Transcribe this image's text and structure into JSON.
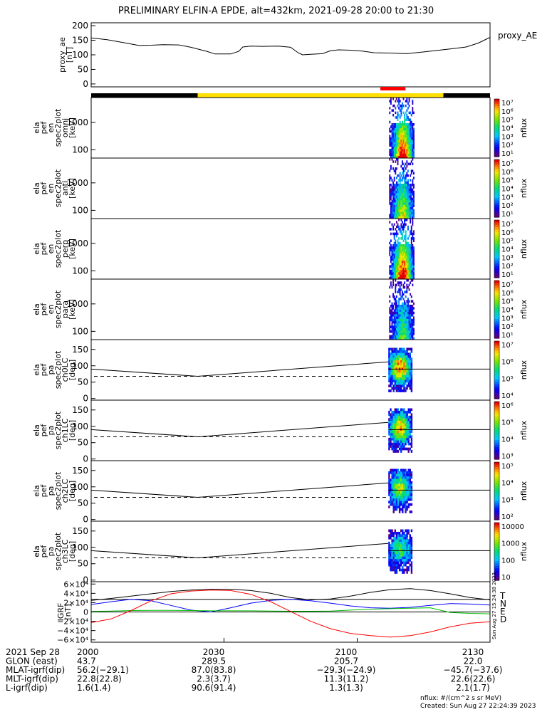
{
  "title": "PRELIMINARY ELFIN-A EPDE, alt=432km, 2021-09-28 20:00 to 21:30",
  "colors": {
    "sci_black": "#000000",
    "sci_yellow": "#ffe000",
    "sci_red": "#ff0000",
    "igrf_T": "#000000",
    "igrf_N": "#0000ff",
    "igrf_E": "#00c000",
    "igrf_D": "#ff0000"
  },
  "status_bar": {
    "segments": [
      {
        "from": 0.0,
        "to": 0.267,
        "color": "sci_black"
      },
      {
        "from": 0.267,
        "to": 0.883,
        "color": "sci_yellow"
      },
      {
        "from": 0.883,
        "to": 1.0,
        "color": "sci_black"
      }
    ],
    "red_marker": {
      "from": 0.725,
      "to": 0.788
    }
  },
  "chart_data": [
    {
      "type": "line",
      "panel": "proxy_ae",
      "ylabel_lines": [
        "proxy_ae",
        "[nT]"
      ],
      "legend": "proxy_AE",
      "ylim": [
        -10,
        210
      ],
      "yticks": [
        "200",
        "150",
        "100",
        "50",
        "0"
      ],
      "ytick_values": [
        200,
        150,
        100,
        50,
        0
      ],
      "x": [
        0,
        0.04,
        0.08,
        0.12,
        0.15,
        0.18,
        0.22,
        0.25,
        0.29,
        0.31,
        0.33,
        0.35,
        0.37,
        0.38,
        0.4,
        0.43,
        0.47,
        0.5,
        0.52,
        0.53,
        0.55,
        0.58,
        0.6,
        0.62,
        0.65,
        0.68,
        0.71,
        0.75,
        0.79,
        0.82,
        0.86,
        0.9,
        0.94,
        0.97,
        1.0
      ],
      "values": [
        158,
        152,
        142,
        132,
        133,
        135,
        134,
        126,
        112,
        103,
        103,
        103,
        112,
        127,
        130,
        129,
        130,
        126,
        106,
        100,
        102,
        104,
        114,
        117,
        116,
        113,
        107,
        106,
        104,
        108,
        114,
        120,
        127,
        140,
        160
      ]
    },
    {
      "type": "heatmap",
      "panel": "omni",
      "ylabel_lines": [
        "ela",
        "pef",
        "en",
        "spec2plot",
        "omni",
        "[keV]"
      ],
      "yticks": [
        "1000",
        "100"
      ],
      "colorbar": {
        "label": "nflux",
        "ticks": [
          "10⁷",
          "10⁶",
          "10⁵",
          "10⁴",
          "10³",
          "10²",
          "10¹"
        ]
      }
    },
    {
      "type": "heatmap",
      "panel": "anti",
      "ylabel_lines": [
        "ela",
        "pef",
        "en",
        "spec2plot",
        "anti",
        "[keV]"
      ],
      "yticks": [
        "1000",
        "100"
      ],
      "colorbar": {
        "label": "nflux",
        "ticks": [
          "10⁷",
          "10⁶",
          "10⁵",
          "10⁴",
          "10³",
          "10²",
          "10¹"
        ]
      }
    },
    {
      "type": "heatmap",
      "panel": "perp",
      "ylabel_lines": [
        "ela",
        "pef",
        "en",
        "spec2plot",
        "perp",
        "[keV]"
      ],
      "yticks": [
        "1000",
        "100"
      ],
      "colorbar": {
        "label": "nflux",
        "ticks": [
          "10⁷",
          "10⁶",
          "10⁵",
          "10⁴",
          "10³",
          "10²",
          "10¹"
        ]
      }
    },
    {
      "type": "heatmap",
      "panel": "para",
      "ylabel_lines": [
        "ela",
        "pef",
        "en",
        "spec2plot",
        "para",
        "[keV]"
      ],
      "yticks": [
        "1000",
        "100"
      ],
      "colorbar": {
        "label": "nflux",
        "ticks": [
          "10⁷",
          "10⁶",
          "10⁵",
          "10⁴",
          "10³",
          "10²",
          "10¹"
        ]
      }
    },
    {
      "type": "heatmap",
      "panel": "ch0LC",
      "ylabel_lines": [
        "ela",
        "pef",
        "pa",
        "spec2plot",
        "ch0LC",
        "[deg]"
      ],
      "yticks": [
        "150",
        "100",
        "50",
        "0"
      ],
      "colorbar": {
        "label": "nflux",
        "ticks": [
          "10⁷",
          "10⁶",
          "10⁵",
          "10⁴"
        ]
      }
    },
    {
      "type": "heatmap",
      "panel": "ch1LC",
      "ylabel_lines": [
        "ela",
        "pef",
        "pa",
        "spec2plot",
        "ch1LC",
        "[deg]"
      ],
      "yticks": [
        "150",
        "100",
        "50",
        "0"
      ],
      "colorbar": {
        "label": "nflux",
        "ticks": [
          "10⁶",
          "10⁵",
          "10⁴",
          "10³"
        ]
      }
    },
    {
      "type": "heatmap",
      "panel": "ch2LC",
      "ylabel_lines": [
        "ela",
        "pef",
        "pa",
        "spec2plot",
        "ch2LC",
        "[deg]"
      ],
      "yticks": [
        "150",
        "100",
        "50",
        "0"
      ],
      "colorbar": {
        "label": "nflux",
        "ticks": [
          "10⁵",
          "10⁴",
          "10³",
          "10²"
        ]
      }
    },
    {
      "type": "heatmap",
      "panel": "ch3LC",
      "ylabel_lines": [
        "ela",
        "pef",
        "pa",
        "spec2plot",
        "ch3LC",
        "[deg]"
      ],
      "yticks": [
        "150",
        "100",
        "50",
        "0"
      ],
      "colorbar": {
        "label": "nflux",
        "ticks": [
          "10000",
          "1000",
          "100",
          "10"
        ]
      }
    },
    {
      "type": "line",
      "panel": "igrf",
      "ylabel_lines": [
        "IGRF",
        "[nT]"
      ],
      "ylim": [
        -65000,
        65000
      ],
      "yticks": [
        "6×10⁴",
        "4×10⁴",
        "2×10⁴",
        "0",
        "−2×10⁴",
        "−4×10⁴",
        "−6×10⁴"
      ],
      "ytick_values": [
        60000,
        40000,
        20000,
        0,
        -20000,
        -40000,
        -60000
      ],
      "legend": [
        "T",
        "N",
        "E",
        "D"
      ],
      "x": [
        0,
        0.05,
        0.1,
        0.15,
        0.2,
        0.25,
        0.3,
        0.35,
        0.4,
        0.45,
        0.5,
        0.55,
        0.6,
        0.65,
        0.7,
        0.75,
        0.8,
        0.85,
        0.9,
        0.95,
        1.0
      ],
      "series": [
        {
          "name": "T",
          "values": [
            25000,
            29000,
            34000,
            39000,
            44000,
            47000,
            49000,
            49000,
            46000,
            40000,
            31000,
            26000,
            28000,
            34000,
            42000,
            48000,
            50000,
            46000,
            39000,
            31000,
            26000
          ]
        },
        {
          "name": "N",
          "values": [
            16000,
            22000,
            27000,
            24000,
            14000,
            4000,
            0,
            9000,
            19000,
            25000,
            27000,
            24000,
            19000,
            13000,
            9000,
            8000,
            10000,
            14000,
            18000,
            17000,
            15000
          ]
        },
        {
          "name": "E",
          "values": [
            1000,
            2000,
            3000,
            3500,
            3500,
            3000,
            2500,
            2500,
            2500,
            2000,
            1500,
            1500,
            2000,
            4000,
            6000,
            7000,
            8000,
            9000,
            -1000,
            -3000,
            -4000
          ]
        },
        {
          "name": "D",
          "values": [
            -23000,
            -15000,
            3000,
            24000,
            39000,
            45000,
            47000,
            46000,
            38000,
            22000,
            1000,
            -20000,
            -36000,
            -46000,
            -51000,
            -54000,
            -51000,
            -43000,
            -32000,
            -24000,
            -21000
          ]
        }
      ]
    }
  ],
  "x_axis": {
    "ticks": [
      "2000",
      "2030",
      "2100",
      "2130"
    ],
    "tick_values": [
      0,
      0.333,
      0.667,
      1.0
    ]
  },
  "footer_rows": [
    {
      "label": "2021 Sep 28",
      "values": [
        "2000",
        "2030",
        "2100",
        "2130"
      ]
    },
    {
      "label": "GLON (east)",
      "values": [
        "43.7",
        "289.5",
        "205.7",
        "22.0"
      ]
    },
    {
      "label": "MLAT-igrf(dip)",
      "values": [
        "56.2(−29.1)",
        "87.0(83.8)",
        "−29.3(−24.9)",
        "−45.7(−37.6)"
      ]
    },
    {
      "label": "MLT-igrf(dip)",
      "values": [
        "22.8(22.8)",
        "2.3(3.7)",
        "11.3(11.2)",
        "22.6(22.6)"
      ]
    },
    {
      "label": "L-igrf(dip)",
      "values": [
        "1.6(1.4)",
        "90.6(91.4)",
        "1.3(1.3)",
        "2.1(1.7)"
      ]
    }
  ],
  "side_stamp": "Sun Aug 27 15:24:38 2023",
  "footer_notes": {
    "units": "nflux: #/(cm^2 s sr MeV)",
    "created": "Created: Sun Aug 27 22:24:39 2023"
  }
}
